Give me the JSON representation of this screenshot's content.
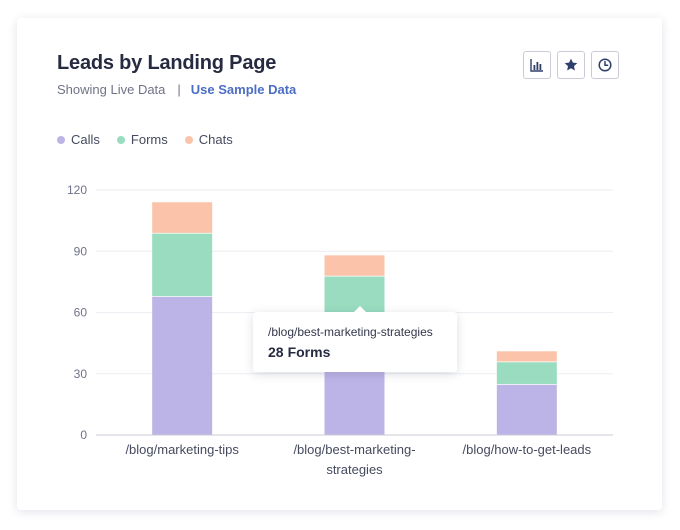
{
  "card": {
    "title": "Leads by Landing Page",
    "subtitle": {
      "status": "Showing Live Data",
      "separator": "|",
      "link": "Use Sample Data"
    },
    "toolbar": [
      {
        "icon": "bar-chart-icon"
      },
      {
        "icon": "star-icon"
      },
      {
        "icon": "clock-icon"
      }
    ]
  },
  "tooltip": {
    "label": "/blog/best-marketing-strategies",
    "value": "28",
    "unit": "Forms"
  },
  "chart_data": {
    "type": "bar",
    "stacked": true,
    "categories": [
      "/blog/marketing-tips",
      "/blog/best-marketing-strategies",
      "/blog/how-to-get-leads"
    ],
    "category_labels": [
      [
        "/blog/marketing-tips"
      ],
      [
        "/blog/best-marketing-",
        "strategies"
      ],
      [
        "/blog/how-to-get-leads"
      ]
    ],
    "series": [
      {
        "name": "Calls",
        "values": [
          68,
          50,
          25
        ],
        "color": "#bcb4e6"
      },
      {
        "name": "Forms",
        "values": [
          31,
          28,
          11
        ],
        "color": "#9adcbf"
      },
      {
        "name": "Chats",
        "values": [
          15,
          10,
          5
        ],
        "color": "#fbc4aa"
      }
    ],
    "ylim": [
      0,
      120
    ],
    "yticks": [
      0,
      30,
      60,
      90,
      120
    ],
    "grid": true,
    "legend_position": "top-left",
    "title": "Leads by Landing Page",
    "xlabel": "",
    "ylabel": ""
  }
}
